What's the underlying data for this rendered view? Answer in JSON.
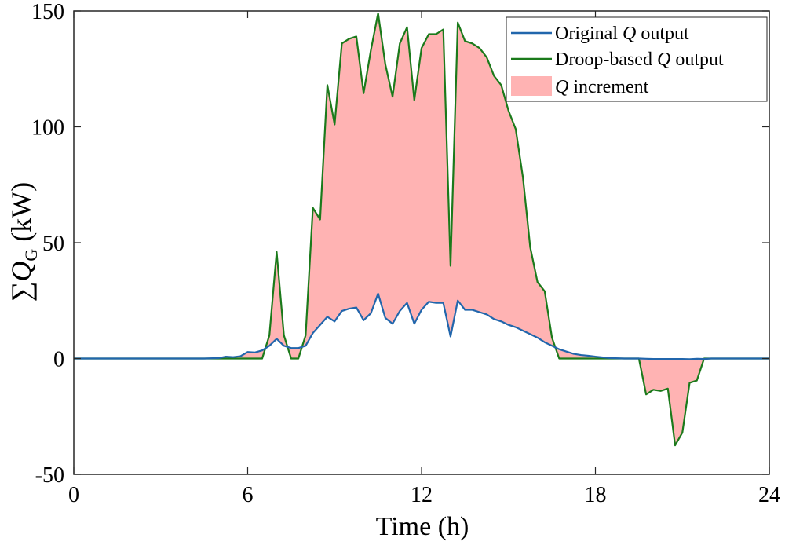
{
  "chart_data": {
    "type": "area",
    "xlabel": "Time (h)",
    "ylabel": {
      "prefix": "∑",
      "symbol": "Q",
      "subscript": "G",
      "unit": " (kW)"
    },
    "xlim": [
      0,
      24
    ],
    "ylim": [
      -50,
      150
    ],
    "xticks": [
      0,
      6,
      12,
      18,
      24
    ],
    "yticks": [
      -50,
      0,
      50,
      100,
      150
    ],
    "grid": false,
    "legend_position": "top-right",
    "legend": [
      {
        "name": "original",
        "prefix": "Original ",
        "symbol": "Q",
        "suffix": " output",
        "color": "#2166ac",
        "kind": "line"
      },
      {
        "name": "droop",
        "prefix": "Droop-based ",
        "symbol": "Q",
        "suffix": " output",
        "color": "#1b7a1b",
        "kind": "line"
      },
      {
        "name": "increment",
        "prefix": "",
        "symbol": "Q",
        "suffix": " increment",
        "color": "#ffb3b3",
        "kind": "area"
      }
    ],
    "x": [
      0,
      0.5,
      1,
      1.5,
      2,
      2.5,
      3,
      3.5,
      4,
      4.5,
      5,
      5.25,
      5.5,
      5.75,
      6,
      6.25,
      6.5,
      6.75,
      7,
      7.25,
      7.5,
      7.75,
      8,
      8.25,
      8.5,
      8.75,
      9,
      9.25,
      9.5,
      9.75,
      10,
      10.25,
      10.5,
      10.75,
      11,
      11.25,
      11.5,
      11.75,
      12,
      12.25,
      12.5,
      12.75,
      13,
      13.25,
      13.5,
      13.75,
      14,
      14.25,
      14.5,
      14.75,
      15,
      15.25,
      15.5,
      15.75,
      16,
      16.25,
      16.5,
      16.75,
      17,
      17.25,
      17.5,
      17.75,
      18,
      18.5,
      19,
      19.5,
      19.75,
      20,
      20.25,
      20.5,
      20.75,
      21,
      21.25,
      21.5,
      21.75,
      22,
      22.5,
      23,
      23.5,
      24
    ],
    "series": [
      {
        "name": "Original Q output",
        "values": [
          0,
          0,
          0,
          0,
          0,
          0,
          0,
          0,
          0,
          0,
          0.2,
          0.8,
          0.6,
          1.0,
          2.8,
          2.6,
          3.5,
          5.5,
          8.5,
          5.5,
          4.5,
          4.5,
          5.5,
          11.0,
          14.5,
          18.0,
          16.0,
          20.5,
          21.5,
          22.0,
          16.5,
          19.5,
          28.0,
          17.5,
          15.0,
          20.5,
          24.0,
          15.0,
          21.0,
          24.5,
          24.0,
          24.0,
          9.5,
          25.0,
          21.0,
          21.0,
          20.0,
          19.0,
          17.0,
          16.0,
          14.5,
          13.5,
          12.0,
          10.5,
          9.0,
          7.0,
          5.5,
          4.0,
          3.0,
          2.0,
          1.5,
          1.2,
          0.8,
          0.2,
          0,
          0,
          -0.1,
          -0.2,
          -0.2,
          -0.2,
          -0.2,
          -0.2,
          -0.3,
          -0.1,
          -0.2,
          0,
          0,
          0,
          0,
          0
        ]
      },
      {
        "name": "Droop-based Q output",
        "values": [
          0,
          0,
          0,
          0,
          0,
          0,
          0,
          0,
          0,
          0,
          0,
          0,
          0,
          0,
          0,
          0,
          0,
          10.0,
          46.0,
          10.0,
          0,
          0,
          10.0,
          65.0,
          60.0,
          118.0,
          101.0,
          136.0,
          138.0,
          139.0,
          114.5,
          133.0,
          149.0,
          127.0,
          113.0,
          136.0,
          143.0,
          111.5,
          134.0,
          140.0,
          140.0,
          142.0,
          40.0,
          145.0,
          137.0,
          136.0,
          134.0,
          130.0,
          122.0,
          118.0,
          107.0,
          99.0,
          78.0,
          48.0,
          33.0,
          29.0,
          9.0,
          0,
          0,
          0,
          0,
          0,
          0,
          0,
          0,
          0,
          -15.5,
          -13.5,
          -14.0,
          -13.0,
          -37.5,
          -32.0,
          -10.5,
          -9.5,
          0,
          0,
          0,
          0,
          0,
          0
        ]
      }
    ]
  }
}
